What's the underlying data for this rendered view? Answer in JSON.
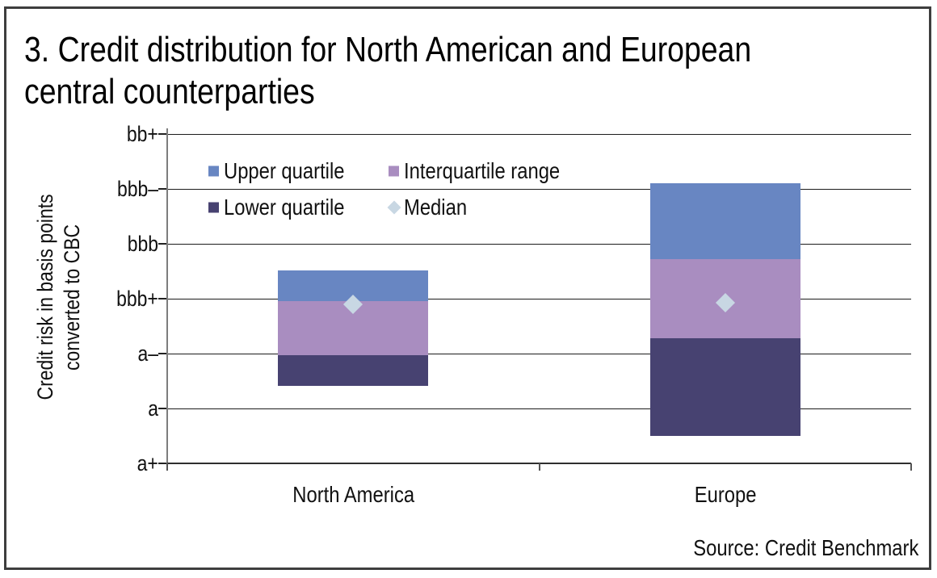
{
  "figure": {
    "title_line1": "3. Credit distribution for North American and European",
    "title_line2": "central counterparties",
    "source": "Source: Credit Benchmark"
  },
  "colors": {
    "upper_quartile": "#6886c2",
    "interquartile_range": "#a98dc0",
    "lower_quartile": "#474271",
    "median": "#c8d7e3",
    "gridline": "#1c1c1c",
    "axis_line": "#7d7d7d",
    "frame_border": "#3e3e3e",
    "text": "#111111"
  },
  "legend": [
    {
      "label": "Upper quartile",
      "shape": "square",
      "color": "#6886c2"
    },
    {
      "label": "Interquartile range",
      "shape": "square",
      "color": "#a98dc0"
    },
    {
      "label": "Lower quartile",
      "shape": "square",
      "color": "#474271"
    },
    {
      "label": "Median",
      "shape": "diamond",
      "color": "#c8d7e3"
    }
  ],
  "y_axis": {
    "title_line1": "Credit risk in basis points",
    "title_line2": "converted to CBC"
  },
  "chart_data": {
    "type": "bar",
    "subtype": "floating stacked quartile-range bars with median markers",
    "title": "3. Credit distribution for North American and European central counterparties",
    "ylabel": "Credit risk in basis points converted to CBC",
    "categories": [
      "North America",
      "Europe"
    ],
    "y_scale": {
      "ticks_top_to_bottom": [
        "bb+",
        "bbb–",
        "bbb",
        "bbb+",
        "a–",
        "a",
        "a+"
      ],
      "unit": "credit-rating scale index: 0 = bb+ (top) to 6 = a+ (bottom)",
      "range": [
        0,
        6
      ]
    },
    "segment_note": "top→iqr_upper = Upper quartile (blue); iqr_upper→iqr_lower = Interquartile range (purple); iqr_lower→bottom = Lower quartile (dark navy)",
    "bars": [
      {
        "category": "North America",
        "top": 2.49,
        "iqr_upper": 3.04,
        "iqr_lower": 4.03,
        "bottom": 4.59,
        "median": 3.1
      },
      {
        "category": "Europe",
        "top": 0.9,
        "iqr_upper": 2.28,
        "iqr_lower": 3.72,
        "bottom": 5.5,
        "median": 3.07
      }
    ],
    "grid": true,
    "legend_position": "inside plot, top-left, two rows"
  }
}
